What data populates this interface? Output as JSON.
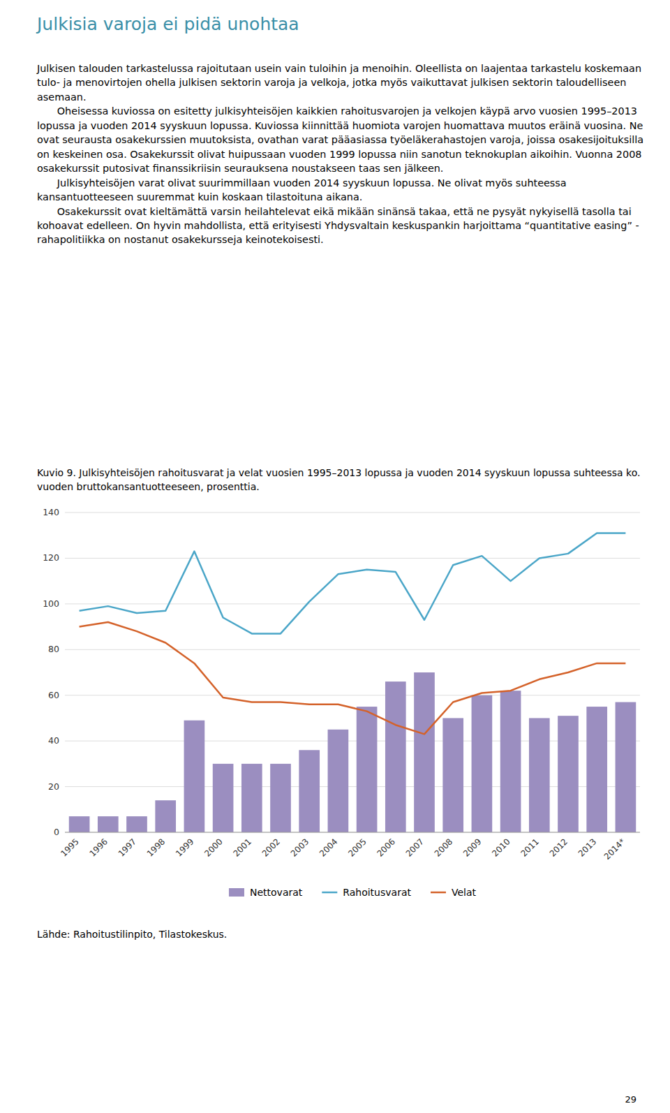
{
  "page_title": "Julkisia varoja ei pidä unohtaa",
  "paragraphs": [
    "Julkisen talouden tarkastelussa rajoitutaan usein vain tuloihin ja menoihin. Oleellista on laajentaa tarkastelu koskemaan tulo- ja menovirtojen ohella julkisen sektorin varoja ja velkoja, jotka myös vaikuttavat julkisen sektorin taloudelliseen asemaan.",
    "Oheisessa kuviossa on esitetty julkisyhteisöjen kaikkien rahoitusvarojen ja velkojen käypä arvo vuosien 1995–2013 lopussa ja vuoden 2014 syyskuun lopussa. Kuviossa kiinnittää huomiota varojen huomattava muutos eräinä vuosina. Ne ovat seurausta osakekurssien muutoksista, ovathan varat pääasiassa työeläkerahastojen varoja, joissa osakesijoituksilla on keskeinen osa. Osakekurssit olivat huipussaan vuoden 1999 lopussa niin sanotun teknokuplan aikoihin. Vuonna 2008 osakekurssit putosivat finanssikriisin seurauksena noustakseen taas sen jälkeen.",
    "Julkisyhteisöjen varat olivat suurimmillaan vuoden 2014 syyskuun lopussa. Ne olivat myös suhteessa kansantuotteeseen suuremmat kuin koskaan tilastoituna aikana.",
    "Osakekurssit ovat kieltämättä varsin heilahtelevat eikä mikään sinänsä takaa, että ne pysyät nykyisellä tasolla tai kohoavat edelleen. On hyvin mahdollista, että erityisesti Yhdysvaltain keskuspankin harjoittama “quantitative easing” -rahapolitiikka on nostanut osakekursseja keinotekoisesti."
  ],
  "source": "Lähde: Rahoitustilinpito, Tilastokeskus.",
  "page_number": "29",
  "chart_data": {
    "type": "bar",
    "title": "Kuvio 9. Julkisyhteisöjen rahoitusvarat ja velat vuosien 1995–2013 lopussa ja vuoden 2014 syyskuun lopussa suhteessa ko. vuoden bruttokansantuotteeseen, prosenttia.",
    "categories": [
      "1995",
      "1996",
      "1997",
      "1998",
      "1999",
      "2000",
      "2001",
      "2002",
      "2003",
      "2004",
      "2005",
      "2006",
      "2007",
      "2008",
      "2009",
      "2010",
      "2011",
      "2012",
      "2013",
      "2014*"
    ],
    "series": [
      {
        "name": "Nettovarat",
        "type": "bar",
        "color": "#9b8ec0",
        "values": [
          7,
          7,
          7,
          14,
          49,
          30,
          30,
          30,
          36,
          45,
          55,
          66,
          70,
          50,
          60,
          62,
          50,
          51,
          55,
          57
        ]
      },
      {
        "name": "Rahoitusvarat",
        "type": "line",
        "color": "#4ba6c8",
        "values": [
          97,
          99,
          96,
          97,
          123,
          94,
          87,
          87,
          101,
          113,
          115,
          114,
          93,
          117,
          121,
          110,
          120,
          122,
          131,
          131
        ]
      },
      {
        "name": "Velat",
        "type": "line",
        "color": "#d4622a",
        "values": [
          90,
          92,
          88,
          83,
          74,
          59,
          57,
          57,
          56,
          56,
          53,
          47,
          43,
          57,
          61,
          62,
          67,
          70,
          74,
          74
        ]
      }
    ],
    "ylim": [
      0,
      140
    ],
    "yticks": [
      0,
      20,
      40,
      60,
      80,
      100,
      120,
      140
    ],
    "grid": true,
    "legend": "bottom"
  }
}
